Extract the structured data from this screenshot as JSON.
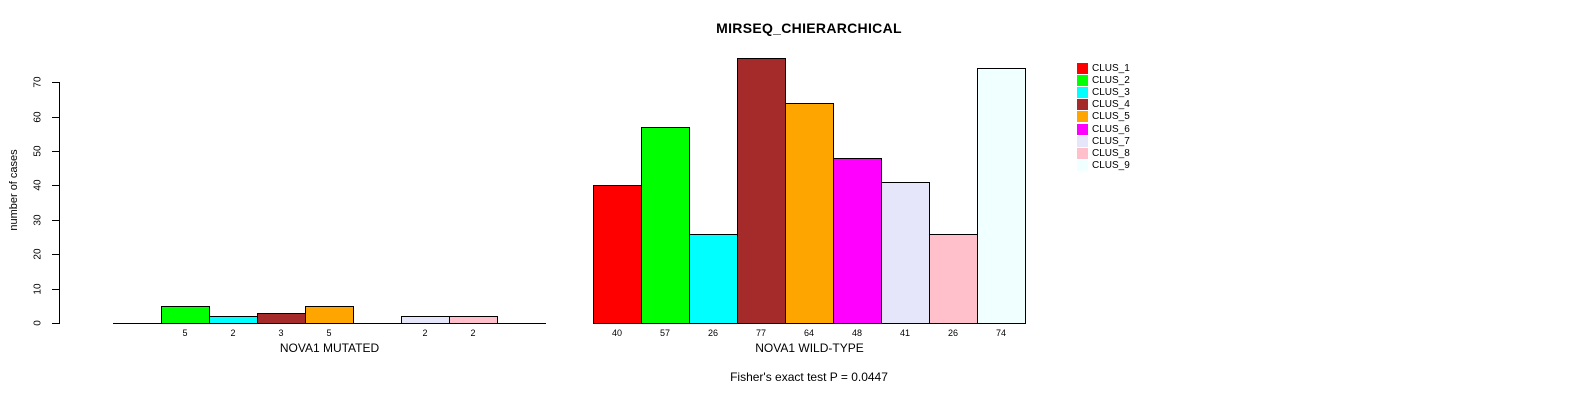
{
  "title": "MIRSEQ_CHIERARCHICAL",
  "chart_data": {
    "type": "bar",
    "title": "MIRSEQ_CHIERARCHICAL",
    "xlabel": "",
    "ylabel": "number of cases",
    "ylim": [
      0,
      70
    ],
    "yticks": [
      0,
      10,
      20,
      30,
      40,
      50,
      60,
      70
    ],
    "grid": false,
    "legend_position": "right-outside",
    "categories": [
      "CLUS_1",
      "CLUS_2",
      "CLUS_3",
      "CLUS_4",
      "CLUS_5",
      "CLUS_6",
      "CLUS_7",
      "CLUS_8",
      "CLUS_9"
    ],
    "colors": [
      "#FF0000",
      "#00FF00",
      "#00FFFF",
      "#A52A2A",
      "#FFA500",
      "#FF00FF",
      "#E6E6FA",
      "#FFC0CB",
      "#F0FFFF"
    ],
    "groups": [
      {
        "label": "NOVA1 MUTATED",
        "values": [
          0,
          5,
          2,
          3,
          5,
          0,
          2,
          2,
          0
        ]
      },
      {
        "label": "NOVA1 WILD-TYPE",
        "values": [
          40,
          57,
          26,
          77,
          64,
          48,
          41,
          26,
          74
        ]
      }
    ],
    "bar_value_labels": {
      "shown": true,
      "note": "labels shown under each bar, omitted for zero-value slots"
    },
    "annotation": "Fisher's exact test P = 0.0447"
  },
  "legend": {
    "items": [
      {
        "label": "CLUS_1",
        "color": "#FF0000"
      },
      {
        "label": "CLUS_2",
        "color": "#00FF00"
      },
      {
        "label": "CLUS_3",
        "color": "#00FFFF"
      },
      {
        "label": "CLUS_4",
        "color": "#A52A2A"
      },
      {
        "label": "CLUS_5",
        "color": "#FFA500"
      },
      {
        "label": "CLUS_6",
        "color": "#FF00FF"
      },
      {
        "label": "CLUS_7",
        "color": "#E6E6FA"
      },
      {
        "label": "CLUS_8",
        "color": "#FFC0CB"
      },
      {
        "label": "CLUS_9",
        "color": "#F0FFFF"
      }
    ]
  },
  "text_color": "#000000",
  "background_color": "#FFFFFF"
}
